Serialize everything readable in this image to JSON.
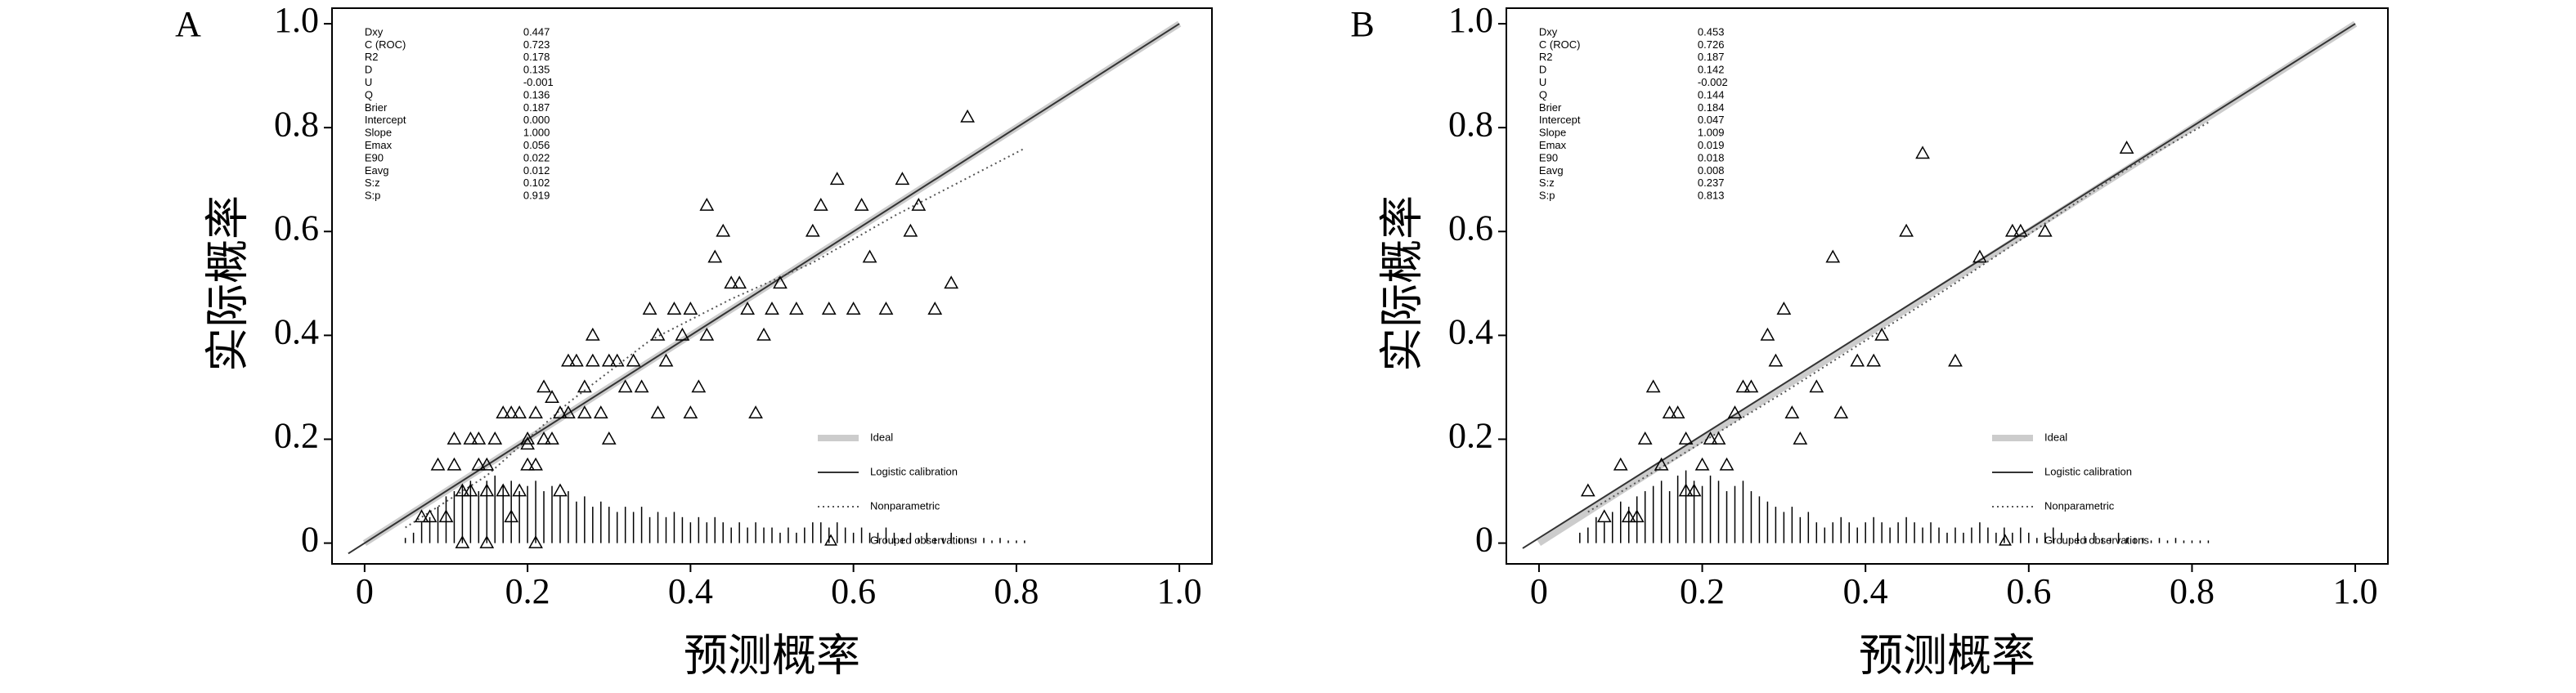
{
  "chart_data": [
    {
      "type": "calibration",
      "panel": "A",
      "xlabel": "预测概率",
      "ylabel": "实际概率",
      "xlim": [
        -0.04,
        1.04
      ],
      "ylim": [
        -0.04,
        1.03
      ],
      "xticks": [
        0,
        0.2,
        0.4,
        0.6,
        0.8,
        {
          "value": 1,
          "label": "1.0"
        }
      ],
      "yticks": [
        0,
        0.2,
        0.4,
        0.6,
        0.8,
        {
          "value": 1,
          "label": "1.0"
        }
      ],
      "stat_names": [
        "Dxy",
        "C (ROC)",
        "R2",
        "D",
        "U",
        "Q",
        "Brier",
        "Intercept",
        "Slope",
        "Emax",
        "E90",
        "Eavg",
        "S:z",
        "S:p"
      ],
      "stat_values": [
        0.447,
        0.723,
        0.178,
        0.135,
        -0.001,
        0.136,
        0.187,
        {
          "value": 0,
          "label": "0.000"
        },
        {
          "value": 1,
          "label": "1.000"
        },
        0.056,
        0.022,
        0.012,
        0.102,
        0.919
      ],
      "series": [
        {
          "name": "Ideal",
          "style": "thick",
          "color": "#cccccc",
          "x": [
            0,
            1
          ],
          "values": [
            0,
            1
          ]
        },
        {
          "name": "Logistic calibration",
          "style": "solid",
          "color": "#333333",
          "x": [
            -0.02,
            1
          ],
          "values": [
            -0.02,
            1
          ]
        },
        {
          "name": "Nonparametric",
          "style": "dotted",
          "color": "#555555",
          "x": [
            0.05,
            0.15,
            0.25,
            0.35,
            0.45,
            0.55,
            0.65,
            0.81
          ],
          "values": [
            0.03,
            0.13,
            0.27,
            0.39,
            0.47,
            0.54,
            0.63,
            0.76
          ]
        },
        {
          "name": "Grouped observations",
          "style": "triangle",
          "color": "#000000",
          "x": [
            0.07,
            0.08,
            0.09,
            0.1,
            0.11,
            0.11,
            0.12,
            0.12,
            0.13,
            0.13,
            0.14,
            0.14,
            0.15,
            0.15,
            0.15,
            0.16,
            0.17,
            0.17,
            0.18,
            0.18,
            0.19,
            0.19,
            0.2,
            0.2,
            0.2,
            0.21,
            0.21,
            0.21,
            0.22,
            0.22,
            0.23,
            0.23,
            0.24,
            0.24,
            0.25,
            0.25,
            0.26,
            0.27,
            0.27,
            0.28,
            0.28,
            0.29,
            0.3,
            0.3,
            0.31,
            0.32,
            0.33,
            0.34,
            0.35,
            0.36,
            0.36,
            0.37,
            0.38,
            0.39,
            0.4,
            0.4,
            0.41,
            0.42,
            0.42,
            0.43,
            0.44,
            0.45,
            0.46,
            0.47,
            0.48,
            0.49,
            0.5,
            0.51,
            0.53,
            0.55,
            0.56,
            0.57,
            0.58,
            0.6,
            0.61,
            0.62,
            0.64,
            0.66,
            0.67,
            0.68,
            0.7,
            0.72,
            0.74
          ],
          "values": [
            0.05,
            0.05,
            0.15,
            0.05,
            0.2,
            0.15,
            0.1,
            0.0,
            0.2,
            0.1,
            0.15,
            0.2,
            0.15,
            0.0,
            0.1,
            0.2,
            0.25,
            0.1,
            0.25,
            0.05,
            0.25,
            0.1,
            0.2,
            0.15,
            0.19,
            0.15,
            0.0,
            0.25,
            0.3,
            0.2,
            0.2,
            0.28,
            0.25,
            0.1,
            0.35,
            0.25,
            0.35,
            0.25,
            0.3,
            0.4,
            0.35,
            0.25,
            0.2,
            0.35,
            0.35,
            0.3,
            0.35,
            0.3,
            0.45,
            0.25,
            0.4,
            0.35,
            0.45,
            0.4,
            0.25,
            0.45,
            0.3,
            0.4,
            0.65,
            0.55,
            0.6,
            0.5,
            0.5,
            0.45,
            0.25,
            0.4,
            0.45,
            0.5,
            0.45,
            0.6,
            0.65,
            0.45,
            0.7,
            0.45,
            0.65,
            0.55,
            0.45,
            0.7,
            0.6,
            0.65,
            0.45,
            0.5,
            0.82
          ]
        }
      ],
      "distribution": {
        "x": [
          0.05,
          0.06,
          0.07,
          0.08,
          0.09,
          0.1,
          0.11,
          0.12,
          0.13,
          0.14,
          0.15,
          0.16,
          0.17,
          0.18,
          0.19,
          0.2,
          0.21,
          0.22,
          0.23,
          0.24,
          0.25,
          0.26,
          0.27,
          0.28,
          0.29,
          0.3,
          0.31,
          0.32,
          0.33,
          0.34,
          0.35,
          0.36,
          0.37,
          0.38,
          0.39,
          0.4,
          0.41,
          0.42,
          0.43,
          0.44,
          0.45,
          0.46,
          0.47,
          0.48,
          0.49,
          0.5,
          0.51,
          0.52,
          0.53,
          0.54,
          0.55,
          0.56,
          0.57,
          0.58,
          0.59,
          0.6,
          0.61,
          0.62,
          0.63,
          0.64,
          0.65,
          0.66,
          0.67,
          0.68,
          0.69,
          0.7,
          0.71,
          0.72,
          0.73,
          0.74,
          0.75,
          0.76,
          0.77,
          0.78,
          0.79,
          0.8,
          0.81
        ],
        "values": [
          0.01,
          0.02,
          0.04,
          0.05,
          0.07,
          0.09,
          0.1,
          0.11,
          0.12,
          0.1,
          0.12,
          0.13,
          0.11,
          0.12,
          0.1,
          0.11,
          0.12,
          0.1,
          0.11,
          0.09,
          0.1,
          0.08,
          0.09,
          0.07,
          0.08,
          0.07,
          0.06,
          0.07,
          0.06,
          0.07,
          0.05,
          0.06,
          0.05,
          0.06,
          0.05,
          0.04,
          0.05,
          0.04,
          0.05,
          0.04,
          0.03,
          0.04,
          0.03,
          0.04,
          0.03,
          0.03,
          0.02,
          0.03,
          0.02,
          0.03,
          0.04,
          0.04,
          0.03,
          0.04,
          0.03,
          0.02,
          0.03,
          0.02,
          0.02,
          0.03,
          0.02,
          0.01,
          0.02,
          0.01,
          0.02,
          0.01,
          0.01,
          0.02,
          0.01,
          0.01,
          0.01,
          0.01,
          0.005,
          0.01,
          0.005,
          0.005,
          0.005
        ]
      }
    },
    {
      "type": "calibration",
      "panel": "B",
      "xlabel": "预测概率",
      "ylabel": "实际概率",
      "xlim": [
        -0.04,
        1.04
      ],
      "ylim": [
        -0.04,
        1.03
      ],
      "xticks": [
        0,
        0.2,
        0.4,
        0.6,
        0.8,
        {
          "value": 1,
          "label": "1.0"
        }
      ],
      "yticks": [
        0,
        0.2,
        0.4,
        0.6,
        0.8,
        {
          "value": 1,
          "label": "1.0"
        }
      ],
      "stat_names": [
        "Dxy",
        "C (ROC)",
        "R2",
        "D",
        "U",
        "Q",
        "Brier",
        "Intercept",
        "Slope",
        "Emax",
        "E90",
        "Eavg",
        "S:z",
        "S:p"
      ],
      "stat_values": [
        0.453,
        0.726,
        0.187,
        0.142,
        -0.002,
        0.144,
        0.184,
        0.047,
        1.009,
        0.019,
        0.018,
        0.008,
        0.237,
        0.813
      ],
      "series": [
        {
          "name": "Ideal",
          "style": "thick",
          "color": "#cccccc",
          "x": [
            0,
            1
          ],
          "values": [
            0,
            1
          ]
        },
        {
          "name": "Logistic calibration",
          "style": "solid",
          "color": "#333333",
          "x": [
            -0.02,
            1
          ],
          "values": [
            -0.01,
            1
          ]
        },
        {
          "name": "Nonparametric",
          "style": "dotted",
          "color": "#555555",
          "x": [
            0.06,
            0.3,
            0.5,
            0.72,
            0.82
          ],
          "values": [
            0.06,
            0.29,
            0.49,
            0.72,
            0.81
          ]
        },
        {
          "name": "Grouped observations",
          "style": "triangle",
          "color": "#000000",
          "x": [
            0.06,
            0.08,
            0.1,
            0.11,
            0.12,
            0.13,
            0.14,
            0.15,
            0.16,
            0.17,
            0.18,
            0.18,
            0.19,
            0.2,
            0.21,
            0.22,
            0.23,
            0.24,
            0.25,
            0.26,
            0.28,
            0.29,
            0.3,
            0.31,
            0.32,
            0.34,
            0.36,
            0.37,
            0.39,
            0.41,
            0.42,
            0.45,
            0.47,
            0.51,
            0.54,
            0.58,
            0.59,
            0.62,
            0.72
          ],
          "values": [
            0.1,
            0.05,
            0.15,
            0.05,
            0.05,
            0.2,
            0.3,
            0.15,
            0.25,
            0.25,
            0.1,
            0.2,
            0.1,
            0.15,
            0.2,
            0.2,
            0.15,
            0.25,
            0.3,
            0.3,
            0.4,
            0.35,
            0.45,
            0.25,
            0.2,
            0.3,
            0.55,
            0.25,
            0.35,
            0.35,
            0.4,
            0.6,
            0.75,
            0.35,
            0.55,
            0.6,
            0.6,
            0.6,
            0.76
          ]
        }
      ],
      "distribution": {
        "x": [
          0.05,
          0.06,
          0.07,
          0.08,
          0.09,
          0.1,
          0.11,
          0.12,
          0.13,
          0.14,
          0.15,
          0.16,
          0.17,
          0.18,
          0.19,
          0.2,
          0.21,
          0.22,
          0.23,
          0.24,
          0.25,
          0.26,
          0.27,
          0.28,
          0.29,
          0.3,
          0.31,
          0.32,
          0.33,
          0.34,
          0.35,
          0.36,
          0.37,
          0.38,
          0.39,
          0.4,
          0.41,
          0.42,
          0.43,
          0.44,
          0.45,
          0.46,
          0.47,
          0.48,
          0.49,
          0.5,
          0.51,
          0.52,
          0.53,
          0.54,
          0.55,
          0.56,
          0.57,
          0.58,
          0.59,
          0.6,
          0.61,
          0.62,
          0.63,
          0.64,
          0.65,
          0.66,
          0.67,
          0.68,
          0.69,
          0.7,
          0.71,
          0.72,
          0.73,
          0.74,
          0.75,
          0.76,
          0.77,
          0.78,
          0.79,
          0.8,
          0.81,
          0.82
        ],
        "values": [
          0.02,
          0.03,
          0.05,
          0.04,
          0.06,
          0.08,
          0.07,
          0.09,
          0.1,
          0.11,
          0.12,
          0.1,
          0.13,
          0.14,
          0.12,
          0.11,
          0.13,
          0.12,
          0.1,
          0.11,
          0.12,
          0.1,
          0.09,
          0.08,
          0.07,
          0.06,
          0.07,
          0.05,
          0.06,
          0.04,
          0.03,
          0.04,
          0.05,
          0.04,
          0.03,
          0.04,
          0.05,
          0.04,
          0.03,
          0.04,
          0.05,
          0.04,
          0.03,
          0.04,
          0.03,
          0.02,
          0.03,
          0.02,
          0.03,
          0.04,
          0.03,
          0.02,
          0.03,
          0.02,
          0.03,
          0.02,
          0.01,
          0.02,
          0.03,
          0.02,
          0.01,
          0.02,
          0.01,
          0.02,
          0.01,
          0.01,
          0.02,
          0.01,
          0.01,
          0.01,
          0.005,
          0.01,
          0.005,
          0.01,
          0.005,
          0.005,
          0.005,
          0.005
        ]
      }
    }
  ]
}
